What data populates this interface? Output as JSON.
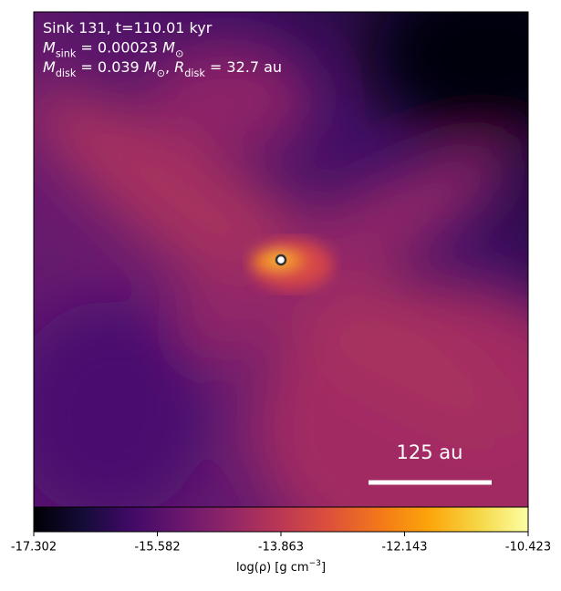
{
  "chart_data": {
    "type": "image",
    "annotations": [
      [
        {
          "text": "Sink 131, t=110.01 kyr"
        }
      ],
      [
        {
          "text": "M",
          "italic": true
        },
        {
          "sub": "sink"
        },
        {
          "text": " = 0.00023 "
        },
        {
          "text": "M",
          "italic": true
        },
        {
          "sub": "⊙"
        }
      ],
      [
        {
          "text": "M",
          "italic": true
        },
        {
          "sub": "disk"
        },
        {
          "text": " = 0.039 "
        },
        {
          "text": "M",
          "italic": true
        },
        {
          "sub": "⊙"
        },
        {
          "text": ", "
        },
        {
          "text": "R",
          "italic": true
        },
        {
          "sub": "disk"
        },
        {
          "text": " = 32.7 au"
        }
      ]
    ],
    "scale_bar_label": "125 au",
    "colorbar": {
      "label": [
        {
          "text": "log(ρ) [g cm"
        },
        {
          "sup": "−3"
        },
        {
          "text": "]"
        }
      ],
      "clim": [
        -17.302,
        -10.423
      ],
      "ticks": [
        -17.302,
        -15.582,
        -13.863,
        -12.143,
        -10.423
      ],
      "colormap": "inferno"
    }
  }
}
